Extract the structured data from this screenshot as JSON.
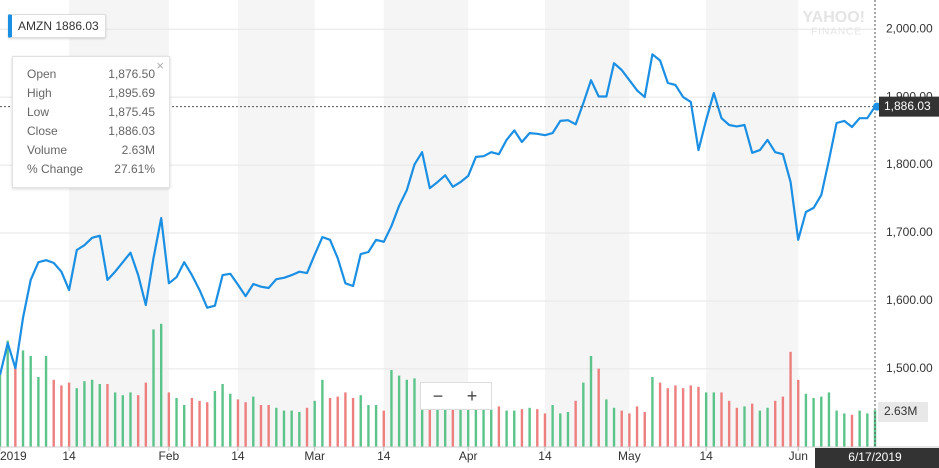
{
  "chart_data": {
    "type": "line",
    "symbol": "AMZN",
    "symbol_price": 1886.03,
    "categories": [
      "2019",
      null,
      null,
      null,
      null,
      null,
      null,
      null,
      null,
      "14",
      null,
      null,
      null,
      null,
      null,
      null,
      null,
      null,
      null,
      null,
      null,
      null,
      "Feb",
      null,
      null,
      null,
      null,
      null,
      null,
      null,
      null,
      "14",
      null,
      null,
      null,
      null,
      null,
      null,
      null,
      null,
      null,
      "Mar",
      null,
      null,
      null,
      null,
      null,
      null,
      null,
      null,
      "14",
      null,
      null,
      null,
      null,
      null,
      null,
      null,
      null,
      null,
      null,
      "Apr",
      null,
      null,
      null,
      null,
      null,
      null,
      null,
      null,
      null,
      "14",
      null,
      null,
      null,
      null,
      null,
      null,
      null,
      null,
      null,
      null,
      "May",
      null,
      null,
      null,
      null,
      null,
      null,
      null,
      null,
      null,
      "14",
      null,
      null,
      null,
      null,
      null,
      null,
      null,
      null,
      null,
      null,
      null,
      "Jun",
      null,
      null,
      null,
      null,
      null,
      null,
      null,
      null,
      null,
      null
    ],
    "series": [
      {
        "name": "AMZN",
        "color": "#1a8fe3",
        "values": [
          1491,
          1538,
          1501,
          1575,
          1631,
          1657,
          1660,
          1656,
          1643,
          1616,
          1675,
          1682,
          1693,
          1696,
          1631,
          1643,
          1657,
          1671,
          1638,
          1594,
          1663,
          1722,
          1626,
          1635,
          1657,
          1638,
          1616,
          1590,
          1593,
          1638,
          1640,
          1624,
          1607,
          1625,
          1621,
          1619,
          1632,
          1634,
          1638,
          1643,
          1641,
          1668,
          1694,
          1690,
          1663,
          1626,
          1622,
          1669,
          1672,
          1690,
          1687,
          1710,
          1740,
          1763,
          1801,
          1819,
          1766,
          1775,
          1785,
          1768,
          1775,
          1784,
          1812,
          1813,
          1819,
          1816,
          1837,
          1851,
          1834,
          1847,
          1846,
          1844,
          1847,
          1865,
          1866,
          1860,
          1891,
          1925,
          1901,
          1901,
          1950,
          1940,
          1925,
          1910,
          1900,
          1963,
          1954,
          1921,
          1918,
          1900,
          1893,
          1822,
          1866,
          1906,
          1869,
          1859,
          1857,
          1859,
          1818,
          1822,
          1837,
          1819,
          1816,
          1775,
          1690,
          1731,
          1737,
          1756,
          1807,
          1862,
          1865,
          1856,
          1869,
          1869,
          1886
        ]
      }
    ],
    "volume": {
      "up_color": "#5cc48a",
      "down_color": "#ee7f7f",
      "last_label": "2.63M",
      "values": [
        5.4,
        7.6,
        6.0,
        6.9,
        6.5,
        5.0,
        6.5,
        4.8,
        4.4,
        4.6,
        4.2,
        4.7,
        4.8,
        4.5,
        4.5,
        3.9,
        3.7,
        3.9,
        3.7,
        4.6,
        8.4,
        8.8,
        3.9,
        3.5,
        3.0,
        3.5,
        3.3,
        3.2,
        4.0,
        4.5,
        3.8,
        3.4,
        3.2,
        3.6,
        3.0,
        3.0,
        2.8,
        2.6,
        2.6,
        2.5,
        2.8,
        3.3,
        4.8,
        3.5,
        3.6,
        3.9,
        3.5,
        3.7,
        3.0,
        3.0,
        2.6,
        5.5,
        5.1,
        4.8,
        4.9,
        3.5,
        4.0,
        3.7,
        3.0,
        3.0,
        3.4,
        3.0,
        2.8,
        2.7,
        2.7,
        2.9,
        2.6,
        2.6,
        2.7,
        2.8,
        2.7,
        2.4,
        3.0,
        2.4,
        2.5,
        3.3,
        4.6,
        6.5,
        5.6,
        3.4,
        2.8,
        2.6,
        2.4,
        2.9,
        2.5,
        5.0,
        4.6,
        4.2,
        4.4,
        4.2,
        4.4,
        4.3,
        3.9,
        3.9,
        3.9,
        3.3,
        2.8,
        2.9,
        3.1,
        2.6,
        2.8,
        3.3,
        3.6,
        6.8,
        4.8,
        3.8,
        3.5,
        3.6,
        3.9,
        2.6,
        2.4,
        2.3,
        2.6,
        2.4,
        2.63
      ]
    },
    "ylim": [
      1385,
      2043
    ],
    "yticks": [
      {
        "value": 1500,
        "label": "1,500.00"
      },
      {
        "value": 1600,
        "label": "1,600.00"
      },
      {
        "value": 1700,
        "label": "1,700.00"
      },
      {
        "value": 1800,
        "label": "1,800.00"
      },
      {
        "value": 1900,
        "label": "1,900.00"
      },
      {
        "value": 2000,
        "label": "2,000.00"
      }
    ],
    "grid": true,
    "last_price": {
      "value": 1886.03,
      "label": "1,886.03"
    },
    "date_label": "6/17/2019",
    "tooltip": [
      {
        "label": "Open",
        "value": "1,876.50"
      },
      {
        "label": "High",
        "value": "1,895.69"
      },
      {
        "label": "Low",
        "value": "1,875.45"
      },
      {
        "label": "Close",
        "value": "1,886.03"
      },
      {
        "label": "Volume",
        "value": "2.63M"
      },
      {
        "label": "% Change",
        "value": "27.61%"
      }
    ],
    "watermark": [
      "YAHOO!",
      "FINANCE"
    ],
    "zoom": [
      "−",
      "+"
    ]
  }
}
